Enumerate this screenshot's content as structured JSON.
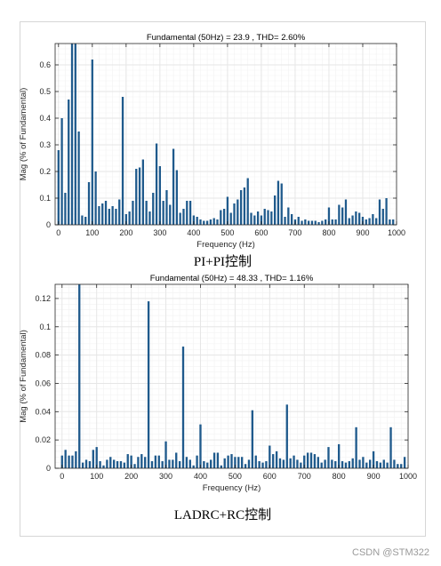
{
  "captions": [
    "PI+PI控制",
    "LADRC+RC控制"
  ],
  "watermark": "CSDN @STM322",
  "colors": {
    "bar": "#1f5a8c",
    "axis": "#262626",
    "grid": "#e6e6e6",
    "minor_grid": "#f2f2f2"
  },
  "chart_data": [
    {
      "type": "bar",
      "title": "Fundamental (50Hz) = 23.9 , THD= 2.60%",
      "xlabel": "Frequency (Hz)",
      "ylabel": "Mag (% of Fundamental)",
      "xlim": [
        -10,
        1000
      ],
      "ylim": [
        0,
        0.68
      ],
      "xticks": [
        0,
        100,
        200,
        300,
        400,
        500,
        600,
        700,
        800,
        900,
        1000
      ],
      "yticks": [
        0,
        0.1,
        0.2,
        0.3,
        0.4,
        0.5,
        0.6
      ],
      "grid": true,
      "x": [
        0,
        10,
        20,
        30,
        40,
        50,
        60,
        70,
        80,
        90,
        100,
        110,
        120,
        130,
        140,
        150,
        160,
        170,
        180,
        190,
        200,
        210,
        220,
        230,
        240,
        250,
        260,
        270,
        280,
        290,
        300,
        310,
        320,
        330,
        340,
        350,
        360,
        370,
        380,
        390,
        400,
        410,
        420,
        430,
        440,
        450,
        460,
        470,
        480,
        490,
        500,
        510,
        520,
        530,
        540,
        550,
        560,
        570,
        580,
        590,
        600,
        610,
        620,
        630,
        640,
        650,
        660,
        670,
        680,
        690,
        700,
        710,
        720,
        730,
        740,
        750,
        760,
        770,
        780,
        790,
        800,
        810,
        820,
        830,
        840,
        850,
        860,
        870,
        880,
        890,
        900,
        910,
        920,
        930,
        940,
        950,
        960,
        970,
        980,
        990
      ],
      "values": [
        0.28,
        0.4,
        0.12,
        0.47,
        0.68,
        0.68,
        0.35,
        0.035,
        0.03,
        0.16,
        0.62,
        0.2,
        0.07,
        0.08,
        0.09,
        0.06,
        0.07,
        0.06,
        0.095,
        0.48,
        0.04,
        0.05,
        0.09,
        0.21,
        0.215,
        0.245,
        0.09,
        0.05,
        0.12,
        0.305,
        0.22,
        0.09,
        0.13,
        0.075,
        0.285,
        0.205,
        0.045,
        0.06,
        0.09,
        0.09,
        0.035,
        0.03,
        0.02,
        0.015,
        0.015,
        0.02,
        0.025,
        0.02,
        0.055,
        0.06,
        0.105,
        0.045,
        0.08,
        0.095,
        0.13,
        0.14,
        0.175,
        0.045,
        0.035,
        0.05,
        0.035,
        0.06,
        0.055,
        0.05,
        0.11,
        0.165,
        0.155,
        0.03,
        0.065,
        0.04,
        0.02,
        0.03,
        0.015,
        0.02,
        0.015,
        0.015,
        0.015,
        0.01,
        0.015,
        0.02,
        0.065,
        0.02,
        0.02,
        0.075,
        0.065,
        0.095,
        0.025,
        0.035,
        0.05,
        0.045,
        0.03,
        0.02,
        0.025,
        0.04,
        0.025,
        0.095,
        0.06,
        0.1,
        0.02,
        0.02
      ]
    },
    {
      "type": "bar",
      "title": "Fundamental (50Hz) = 48.33 , THD= 1.16%",
      "xlabel": "Frequency (Hz)",
      "ylabel": "Mag (% of Fundamental)",
      "xlim": [
        -20,
        1000
      ],
      "ylim": [
        0,
        0.13
      ],
      "xticks": [
        0,
        100,
        200,
        300,
        400,
        500,
        600,
        700,
        800,
        900,
        1000
      ],
      "yticks": [
        0,
        0.02,
        0.04,
        0.06,
        0.08,
        0.1,
        0.12
      ],
      "grid": true,
      "x": [
        0,
        10,
        20,
        30,
        40,
        50,
        60,
        70,
        80,
        90,
        100,
        110,
        120,
        130,
        140,
        150,
        160,
        170,
        180,
        190,
        200,
        210,
        220,
        230,
        240,
        250,
        260,
        270,
        280,
        290,
        300,
        310,
        320,
        330,
        340,
        350,
        360,
        370,
        380,
        390,
        400,
        410,
        420,
        430,
        440,
        450,
        460,
        470,
        480,
        490,
        500,
        510,
        520,
        530,
        540,
        550,
        560,
        570,
        580,
        590,
        600,
        610,
        620,
        630,
        640,
        650,
        660,
        670,
        680,
        690,
        700,
        710,
        720,
        730,
        740,
        750,
        760,
        770,
        780,
        790,
        800,
        810,
        820,
        830,
        840,
        850,
        860,
        870,
        880,
        890,
        900,
        910,
        920,
        930,
        940,
        950,
        960,
        970,
        980,
        990
      ],
      "values": [
        0.009,
        0.013,
        0.009,
        0.009,
        0.012,
        0.13,
        0.004,
        0.006,
        0.005,
        0.013,
        0.015,
        0.005,
        0.002,
        0.006,
        0.008,
        0.006,
        0.005,
        0.005,
        0.004,
        0.01,
        0.009,
        0.003,
        0.008,
        0.01,
        0.008,
        0.118,
        0.005,
        0.009,
        0.009,
        0.005,
        0.019,
        0.006,
        0.006,
        0.011,
        0.005,
        0.086,
        0.008,
        0.006,
        0.002,
        0.009,
        0.031,
        0.005,
        0.004,
        0.006,
        0.011,
        0.011,
        0.002,
        0.007,
        0.009,
        0.01,
        0.008,
        0.008,
        0.008,
        0.003,
        0.006,
        0.041,
        0.009,
        0.005,
        0.004,
        0.005,
        0.016,
        0.01,
        0.012,
        0.007,
        0.006,
        0.045,
        0.007,
        0.009,
        0.006,
        0.004,
        0.009,
        0.011,
        0.011,
        0.01,
        0.008,
        0.004,
        0.006,
        0.015,
        0.006,
        0.005,
        0.017,
        0.005,
        0.004,
        0.005,
        0.007,
        0.029,
        0.006,
        0.008,
        0.004,
        0.006,
        0.012,
        0.005,
        0.004,
        0.006,
        0.004,
        0.029,
        0.006,
        0.003,
        0.003,
        0.008
      ]
    }
  ]
}
